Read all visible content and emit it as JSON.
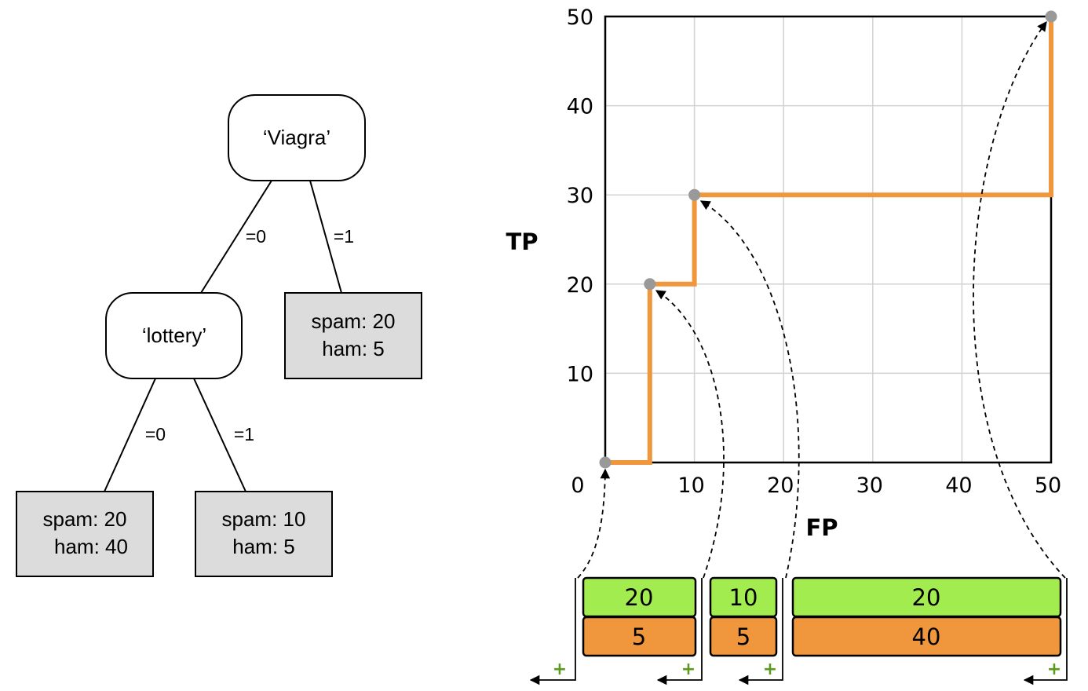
{
  "tree": {
    "root": {
      "label": "‘Viagra’"
    },
    "left_child": {
      "label": "‘lottery’"
    },
    "edges": {
      "root_left": "=0",
      "root_right": "=1",
      "lottery_left": "=0",
      "lottery_right": "=1"
    },
    "leaves": {
      "viagra_1": {
        "spam": "spam: 20",
        "ham": "ham: 5"
      },
      "lottery_0": {
        "spam": "spam: 20",
        "ham": "ham: 40"
      },
      "lottery_1": {
        "spam": "spam: 10",
        "ham": "ham: 5"
      }
    }
  },
  "chart_data": {
    "type": "line",
    "xlabel": "FP",
    "ylabel": "TP",
    "xlim": [
      0,
      50
    ],
    "ylim": [
      0,
      50
    ],
    "grid": true,
    "x_ticks": [
      "0",
      "10",
      "20",
      "30",
      "40",
      "50"
    ],
    "y_ticks": [
      "10",
      "20",
      "30",
      "40",
      "50"
    ],
    "curve": [
      [
        0,
        0
      ],
      [
        5,
        0
      ],
      [
        5,
        20
      ],
      [
        10,
        20
      ],
      [
        10,
        30
      ],
      [
        50,
        30
      ],
      [
        50,
        50
      ]
    ],
    "points": [
      [
        0,
        0
      ],
      [
        5,
        20
      ],
      [
        10,
        30
      ],
      [
        50,
        50
      ]
    ],
    "colors": {
      "curve": "#f0963c",
      "point": "#999999",
      "positive": "#a3ec50",
      "negative": "#f0963c",
      "plus": "#5a9a1c"
    }
  },
  "segments": [
    {
      "pos": "20",
      "neg": "5"
    },
    {
      "pos": "10",
      "neg": "5"
    },
    {
      "pos": "20",
      "neg": "40"
    }
  ],
  "plus_marks": [
    "+",
    "+",
    "+",
    "+"
  ]
}
